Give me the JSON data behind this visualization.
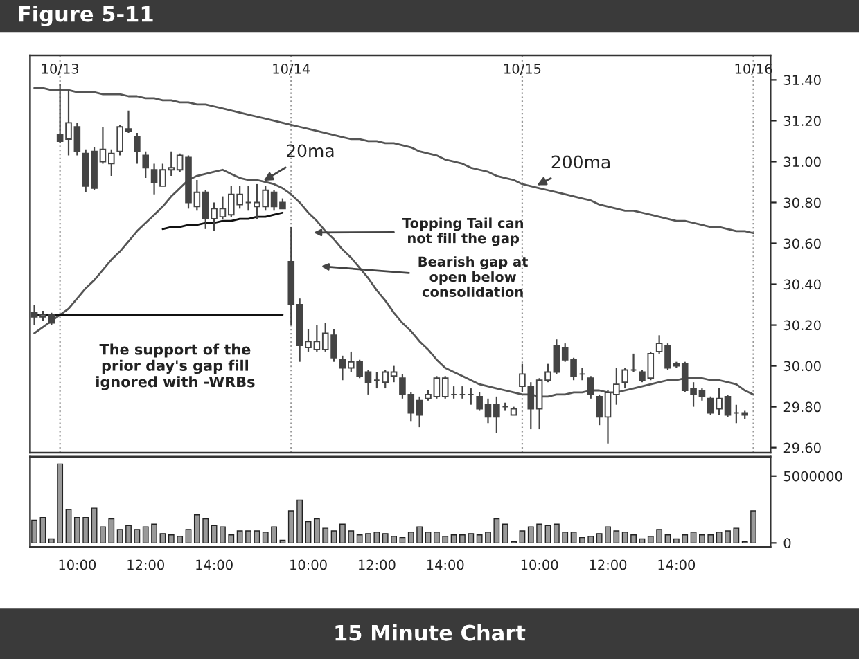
{
  "chart_data": [
    {
      "type": "candlestick",
      "title": "Figure 5-11",
      "categories": [
        null,
        null,
        null,
        "10/13",
        null,
        null,
        null,
        null,
        null,
        null,
        null,
        null,
        null,
        null,
        null,
        null,
        null,
        null,
        null,
        null,
        null,
        null,
        null,
        null,
        null,
        null,
        null,
        null,
        null,
        null,
        "10/14",
        null,
        null,
        null,
        null,
        null,
        null,
        null,
        null,
        null,
        null,
        null,
        null,
        null,
        null,
        null,
        null,
        null,
        null,
        null,
        null,
        null,
        null,
        null,
        null,
        null,
        null,
        "10/15",
        null,
        null,
        null,
        null,
        null,
        null,
        null,
        null,
        null,
        null,
        null,
        null,
        null,
        null,
        null,
        null,
        null,
        null,
        null,
        null,
        null,
        null,
        null,
        null,
        null,
        null,
        "10/16"
      ],
      "ohlc": [
        [
          30.26,
          30.3,
          30.2,
          30.24
        ],
        [
          30.24,
          30.27,
          30.22,
          30.25
        ],
        [
          30.25,
          30.26,
          30.2,
          30.21
        ],
        [
          31.13,
          31.38,
          31.09,
          31.1
        ],
        [
          31.11,
          31.35,
          31.03,
          31.19
        ],
        [
          31.17,
          31.19,
          31.03,
          31.05
        ],
        [
          31.04,
          31.06,
          30.85,
          30.88
        ],
        [
          31.05,
          31.07,
          30.86,
          30.87
        ],
        [
          31.0,
          31.17,
          30.99,
          31.06
        ],
        [
          30.99,
          31.06,
          30.93,
          31.04
        ],
        [
          31.05,
          31.18,
          31.03,
          31.17
        ],
        [
          31.16,
          31.25,
          31.14,
          31.15
        ],
        [
          31.12,
          31.14,
          30.99,
          31.05
        ],
        [
          31.03,
          31.05,
          30.92,
          30.97
        ],
        [
          30.96,
          30.99,
          30.84,
          30.9
        ],
        [
          30.88,
          30.99,
          30.88,
          30.96
        ],
        [
          30.96,
          31.05,
          30.93,
          30.97
        ],
        [
          30.96,
          31.04,
          30.95,
          31.03
        ],
        [
          31.02,
          31.03,
          30.77,
          30.8
        ],
        [
          30.78,
          30.91,
          30.76,
          30.85
        ],
        [
          30.85,
          30.86,
          30.67,
          30.72
        ],
        [
          30.72,
          30.8,
          30.66,
          30.77
        ],
        [
          30.73,
          30.83,
          30.72,
          30.77
        ],
        [
          30.74,
          30.88,
          30.73,
          30.84
        ],
        [
          30.79,
          30.88,
          30.77,
          30.84
        ],
        [
          30.8,
          30.88,
          30.76,
          30.8
        ],
        [
          30.78,
          30.89,
          30.72,
          30.8
        ],
        [
          30.78,
          30.88,
          30.76,
          30.86
        ],
        [
          30.85,
          30.86,
          30.76,
          30.78
        ],
        [
          30.8,
          30.82,
          30.77,
          30.77
        ],
        [
          30.51,
          30.68,
          30.2,
          30.3
        ],
        [
          30.3,
          30.33,
          30.02,
          30.1
        ],
        [
          30.09,
          30.18,
          30.07,
          30.12
        ],
        [
          30.08,
          30.2,
          30.07,
          30.12
        ],
        [
          30.08,
          30.21,
          30.07,
          30.16
        ],
        [
          30.15,
          30.18,
          30.02,
          30.04
        ],
        [
          30.03,
          30.05,
          29.93,
          29.99
        ],
        [
          29.99,
          30.07,
          29.97,
          30.02
        ],
        [
          30.02,
          30.03,
          29.94,
          29.95
        ],
        [
          29.97,
          29.98,
          29.86,
          29.92
        ],
        [
          29.93,
          29.97,
          29.89,
          29.93
        ],
        [
          29.92,
          29.98,
          29.89,
          29.97
        ],
        [
          29.95,
          30.0,
          29.92,
          29.97
        ],
        [
          29.94,
          29.96,
          29.84,
          29.86
        ],
        [
          29.86,
          29.87,
          29.73,
          29.77
        ],
        [
          29.83,
          29.85,
          29.7,
          29.76
        ],
        [
          29.84,
          29.88,
          29.83,
          29.86
        ],
        [
          29.85,
          29.95,
          29.84,
          29.94
        ],
        [
          29.85,
          29.95,
          29.84,
          29.94
        ],
        [
          29.86,
          29.9,
          29.84,
          29.86
        ],
        [
          29.86,
          29.9,
          29.84,
          29.86
        ],
        [
          29.86,
          29.89,
          29.81,
          29.86
        ],
        [
          29.85,
          29.87,
          29.78,
          29.79
        ],
        [
          29.81,
          29.84,
          29.72,
          29.75
        ],
        [
          29.81,
          29.85,
          29.67,
          29.75
        ],
        [
          29.8,
          29.82,
          29.78,
          29.8
        ],
        [
          29.76,
          29.8,
          29.76,
          29.79
        ],
        [
          29.9,
          30.01,
          29.87,
          29.96
        ],
        [
          29.9,
          29.92,
          29.69,
          29.79
        ],
        [
          29.79,
          29.94,
          29.69,
          29.93
        ],
        [
          29.93,
          30.01,
          29.92,
          29.97
        ],
        [
          30.1,
          30.13,
          29.96,
          29.97
        ],
        [
          30.09,
          30.11,
          30.02,
          30.03
        ],
        [
          30.03,
          30.04,
          29.93,
          29.95
        ],
        [
          29.96,
          29.99,
          29.93,
          29.96
        ],
        [
          29.94,
          29.95,
          29.84,
          29.86
        ],
        [
          29.85,
          29.86,
          29.71,
          29.75
        ],
        [
          29.75,
          29.88,
          29.62,
          29.87
        ],
        [
          29.86,
          29.99,
          29.81,
          29.91
        ],
        [
          29.92,
          29.99,
          29.89,
          29.98
        ],
        [
          29.98,
          30.06,
          29.97,
          29.98
        ],
        [
          29.97,
          29.98,
          29.92,
          29.93
        ],
        [
          29.94,
          30.07,
          29.93,
          30.06
        ],
        [
          30.07,
          30.15,
          30.06,
          30.11
        ],
        [
          30.1,
          30.11,
          29.98,
          29.99
        ],
        [
          30.01,
          30.02,
          29.99,
          30.0
        ],
        [
          30.01,
          30.02,
          29.87,
          29.88
        ],
        [
          29.89,
          29.92,
          29.8,
          29.86
        ],
        [
          29.88,
          29.89,
          29.83,
          29.85
        ],
        [
          29.84,
          29.85,
          29.76,
          29.77
        ],
        [
          29.79,
          29.89,
          29.76,
          29.84
        ],
        [
          29.85,
          29.86,
          29.75,
          29.76
        ],
        [
          29.77,
          29.81,
          29.72,
          29.77
        ],
        [
          29.77,
          29.78,
          29.74,
          29.76
        ],
        null
      ],
      "color": "#444444",
      "series": [
        {
          "type": "line",
          "color": "#555555",
          "values": [
            31.36,
            31.36,
            31.35,
            31.35,
            31.35,
            31.34,
            31.34,
            31.34,
            31.33,
            31.33,
            31.33,
            31.32,
            31.32,
            31.31,
            31.31,
            31.3,
            31.3,
            31.29,
            31.29,
            31.28,
            31.28,
            31.27,
            31.26,
            31.25,
            31.24,
            31.23,
            31.22,
            31.21,
            31.2,
            31.19,
            31.18,
            31.17,
            31.16,
            31.15,
            31.14,
            31.13,
            31.12,
            31.11,
            31.11,
            31.1,
            31.1,
            31.09,
            31.09,
            31.08,
            31.07,
            31.05,
            31.04,
            31.03,
            31.01,
            31.0,
            30.99,
            30.97,
            30.96,
            30.95,
            30.93,
            30.92,
            30.91,
            30.89,
            30.88,
            30.87,
            30.86,
            30.85,
            30.84,
            30.83,
            30.82,
            30.81,
            30.79,
            30.78,
            30.77,
            30.76,
            30.76,
            30.75,
            30.74,
            30.73,
            30.72,
            30.71,
            30.71,
            30.7,
            30.69,
            30.68,
            30.68,
            30.67,
            30.66,
            30.66,
            30.65
          ]
        },
        {
          "type": "line",
          "color": "#555555",
          "values": [
            30.16,
            30.19,
            30.22,
            30.25,
            30.28,
            30.33,
            30.38,
            30.42,
            30.47,
            30.52,
            30.56,
            30.61,
            30.66,
            30.7,
            30.74,
            30.78,
            30.83,
            30.87,
            30.91,
            30.93,
            30.94,
            30.95,
            30.96,
            30.94,
            30.92,
            30.91,
            30.91,
            30.9,
            30.89,
            30.87,
            30.84,
            30.8,
            30.75,
            30.71,
            30.66,
            30.62,
            30.57,
            30.53,
            30.48,
            30.43,
            30.37,
            30.32,
            30.26,
            30.21,
            30.17,
            30.12,
            30.08,
            30.03,
            29.99,
            29.97,
            29.95,
            29.93,
            29.91,
            29.9,
            29.89,
            29.88,
            29.87,
            29.86,
            29.86,
            29.85,
            29.85,
            29.86,
            29.86,
            29.87,
            29.87,
            29.88,
            29.88,
            29.87,
            29.87,
            29.88,
            29.89,
            29.9,
            29.91,
            29.92,
            29.93,
            29.93,
            29.94,
            29.94,
            29.94,
            29.93,
            29.93,
            29.92,
            29.91,
            29.88,
            29.86
          ]
        },
        {
          "type": "line",
          "color": "#111111",
          "values": [
            30.25,
            30.25,
            30.25,
            30.25,
            30.25,
            30.25,
            30.25,
            30.25,
            30.25,
            30.25,
            30.25,
            30.25,
            30.25,
            30.25,
            30.25,
            30.25,
            30.25,
            30.25,
            30.25,
            30.25,
            30.25,
            30.25,
            30.25,
            30.25,
            30.25,
            30.25,
            30.25,
            30.25,
            30.25,
            30.25,
            null,
            null,
            null,
            null,
            null,
            null,
            null,
            null,
            null,
            null,
            null,
            null,
            null,
            null,
            null,
            null,
            null,
            null,
            null,
            null,
            null,
            null,
            null,
            null,
            null,
            null,
            null,
            null,
            null,
            null,
            null,
            null,
            null,
            null,
            null,
            null,
            null,
            null,
            null,
            null,
            null,
            null,
            null,
            null,
            null,
            null,
            null,
            null,
            null,
            null,
            null,
            null,
            null,
            null,
            null
          ]
        },
        {
          "type": "line",
          "color": "#111111",
          "values": [
            null,
            null,
            null,
            null,
            null,
            null,
            null,
            null,
            null,
            null,
            null,
            null,
            null,
            null,
            null,
            30.67,
            30.68,
            30.68,
            30.69,
            30.69,
            30.7,
            30.7,
            30.71,
            30.71,
            30.72,
            30.72,
            30.73,
            30.73,
            30.74,
            30.75,
            null,
            null,
            null,
            null,
            null,
            null,
            null,
            null,
            null,
            null,
            null,
            null,
            null,
            null,
            null,
            null,
            null,
            null,
            null,
            null,
            null,
            null,
            null,
            null,
            null,
            null,
            null,
            null,
            null,
            null,
            null,
            null,
            null,
            null,
            null,
            null,
            null,
            null,
            null,
            null,
            null,
            null,
            null,
            null,
            null,
            null,
            null,
            null,
            null,
            null,
            null,
            null,
            null,
            null,
            null
          ]
        }
      ],
      "ylim": [
        29.575,
        31.52
      ],
      "yticks": [
        {
          "value": 29.6,
          "label": "29.60"
        },
        {
          "value": 29.8,
          "label": "29.80"
        },
        {
          "value": 30.0,
          "label": "30.00"
        },
        {
          "value": 30.2,
          "label": "30.20"
        },
        {
          "value": 30.4,
          "label": "30.40"
        },
        {
          "value": 30.6,
          "label": "30.60"
        },
        {
          "value": 30.8,
          "label": "30.80"
        },
        {
          "value": 31.0,
          "label": "31.00"
        },
        {
          "value": 31.2,
          "label": "31.20"
        },
        {
          "value": 31.4,
          "label": "31.40"
        }
      ],
      "grid": "x",
      "annotations": [
        "20ma",
        "200ma",
        "Topping Tail can\nnot fill the gap",
        "Bearish gap at\nopen below\nconsolidation",
        "The support of the\nprior day's gap fill\nignored with -WRBs"
      ]
    },
    {
      "type": "bar",
      "color": "#9a9a9a",
      "categories": [
        null,
        null,
        null,
        null,
        null,
        "10:00",
        null,
        null,
        null,
        null,
        null,
        null,
        null,
        "12:00",
        null,
        null,
        null,
        null,
        null,
        null,
        null,
        "14:00",
        null,
        null,
        null,
        null,
        null,
        null,
        null,
        null,
        null,
        null,
        "10:00",
        null,
        null,
        null,
        null,
        null,
        null,
        null,
        "12:00",
        null,
        null,
        null,
        null,
        null,
        null,
        null,
        "14:00",
        null,
        null,
        null,
        null,
        null,
        null,
        null,
        null,
        null,
        null,
        "10:00",
        null,
        null,
        null,
        null,
        null,
        null,
        null,
        "12:00",
        null,
        null,
        null,
        null,
        null,
        null,
        null,
        "14:00",
        null,
        null,
        null,
        null,
        null,
        null,
        null,
        null,
        null
      ],
      "values": [
        1700000,
        1900000,
        300000,
        5900000,
        2500000,
        1900000,
        1900000,
        2600000,
        1200000,
        1800000,
        1000000,
        1300000,
        1000000,
        1200000,
        1400000,
        700000,
        600000,
        500000,
        1000000,
        2100000,
        1800000,
        1300000,
        1200000,
        600000,
        900000,
        900000,
        900000,
        800000,
        1200000,
        200000,
        2400000,
        3200000,
        1600000,
        1800000,
        1100000,
        900000,
        1400000,
        900000,
        600000,
        700000,
        800000,
        700000,
        500000,
        400000,
        800000,
        1200000,
        800000,
        800000,
        500000,
        600000,
        600000,
        700000,
        600000,
        800000,
        1800000,
        1400000,
        100000,
        900000,
        1200000,
        1400000,
        1300000,
        1400000,
        800000,
        800000,
        400000,
        500000,
        700000,
        1200000,
        900000,
        800000,
        600000,
        300000,
        500000,
        1000000,
        600000,
        300000,
        600000,
        800000,
        600000,
        600000,
        800000,
        900000,
        1100000,
        100000,
        2400000
      ],
      "ylim": [
        -300000,
        6450000
      ],
      "yticks": [
        0,
        5000000
      ],
      "annotations": [
        "15 Minute Chart"
      ]
    }
  ]
}
